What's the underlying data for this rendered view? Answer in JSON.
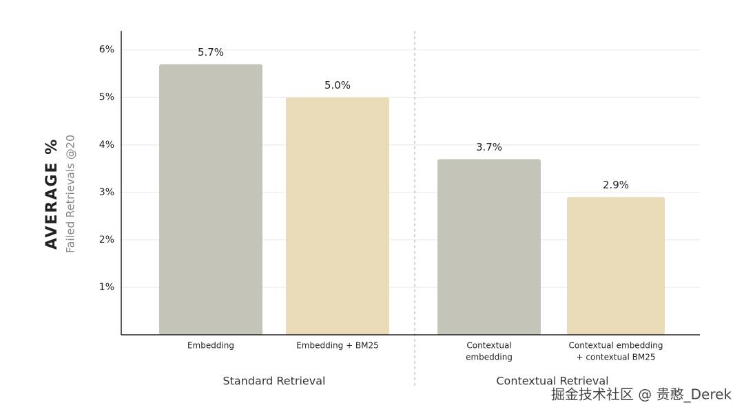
{
  "chart_data": {
    "type": "bar",
    "y_title": "AVERAGE %",
    "y_subtitle": "Failed Retrievals @20",
    "categories": [
      [
        "Embedding"
      ],
      [
        "Embedding + BM25"
      ],
      [
        "Contextual",
        "embedding"
      ],
      [
        "Contextual embedding",
        "+ contextual BM25"
      ]
    ],
    "values": [
      5.7,
      5.0,
      3.7,
      2.9
    ],
    "value_labels": [
      "5.7%",
      "5.0%",
      "3.7%",
      "2.9%"
    ],
    "colors": [
      "#c4c4b8",
      "#ebdcb9",
      "#c4c4b8",
      "#ebdcb9"
    ],
    "groups": [
      "Standard Retrieval",
      "Contextual Retrieval"
    ],
    "ylim": [
      0,
      6.4
    ],
    "yticks": [
      {
        "value": 1,
        "label": "1%"
      },
      {
        "value": 2,
        "label": "2%"
      },
      {
        "value": 3,
        "label": "3%"
      },
      {
        "value": 4,
        "label": "4%"
      },
      {
        "value": 5,
        "label": "5%"
      },
      {
        "value": 6,
        "label": "6%"
      }
    ],
    "grid": true,
    "watermark": "掘金技术社区 @ 贵憨_Derek"
  }
}
